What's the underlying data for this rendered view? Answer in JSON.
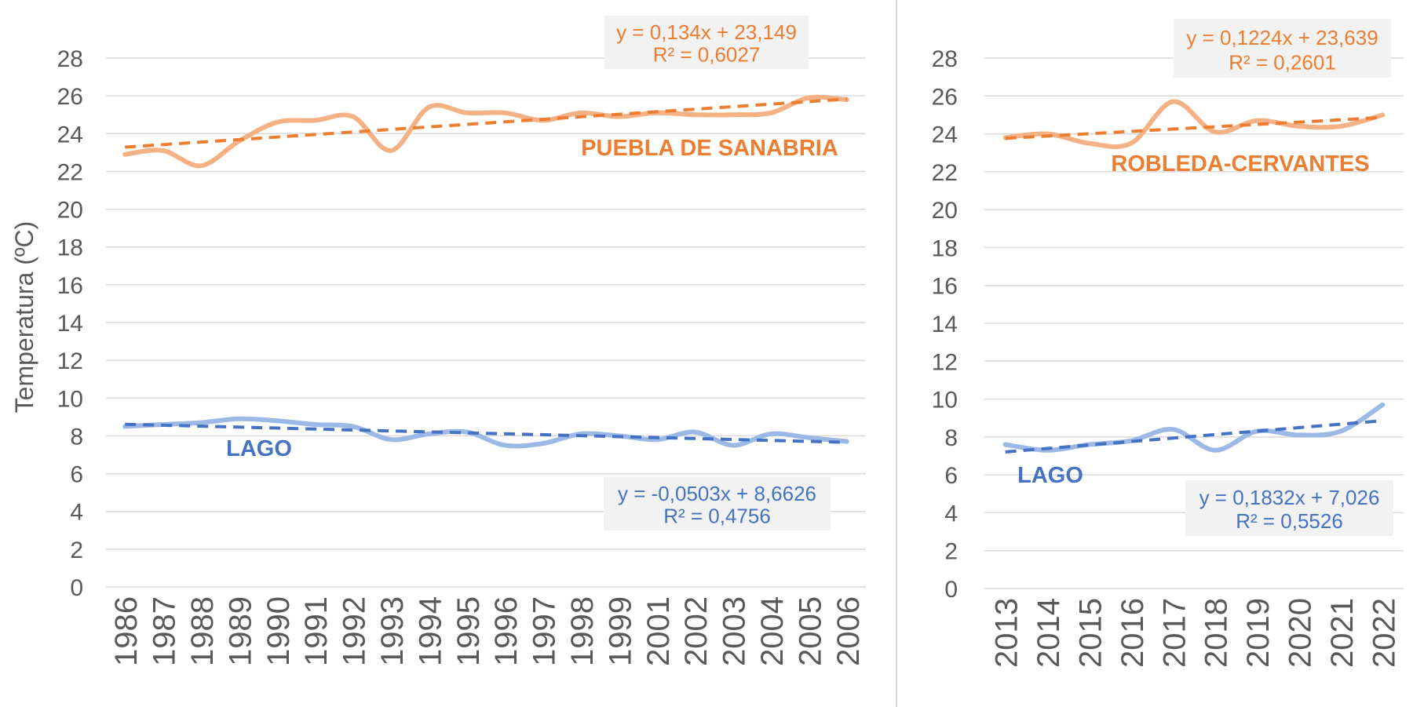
{
  "chart_data": [
    {
      "type": "line",
      "ylabel": "Temperatura (ºC)",
      "ylim": [
        0,
        28
      ],
      "yticks": [
        "0",
        "2",
        "4",
        "6",
        "8",
        "10",
        "12",
        "14",
        "16",
        "18",
        "20",
        "22",
        "24",
        "26",
        "28"
      ],
      "grid": true,
      "categories": [
        "1986",
        "1987",
        "1988",
        "1989",
        "1990",
        "1991",
        "1992",
        "1993",
        "1994",
        "1995",
        "1996",
        "1997",
        "1998",
        "1999",
        "2001",
        "2002",
        "2003",
        "2004",
        "2005",
        "2006"
      ],
      "series": [
        {
          "name": "PUEBLA DE SANABRIA",
          "label": "PUEBLA DE SANABRIA",
          "color": "#f4b183",
          "label_color": "#ed7d31",
          "values": [
            22.9,
            23.1,
            22.3,
            23.6,
            24.6,
            24.7,
            24.9,
            23.1,
            25.4,
            25.1,
            25.1,
            24.7,
            25.1,
            24.9,
            25.1,
            25.0,
            25.0,
            25.1,
            25.9,
            25.8
          ],
          "trendline": {
            "slope": 0.134,
            "intercept": 23.149,
            "color": "#ed7d31",
            "equation": "y = 0,134x + 23,149",
            "r2": "R² = 0,6027"
          }
        },
        {
          "name": "LAGO",
          "label": "LAGO",
          "color": "#9cb8e6",
          "label_color": "#4472c4",
          "values": [
            8.5,
            8.6,
            8.7,
            8.9,
            8.8,
            8.6,
            8.5,
            7.8,
            8.1,
            8.2,
            7.5,
            7.6,
            8.1,
            8.0,
            7.8,
            8.2,
            7.5,
            8.1,
            7.9,
            7.7
          ],
          "trendline": {
            "slope": -0.0503,
            "intercept": 8.6626,
            "color": "#4472c4",
            "equation": "y = -0,0503x + 8,6626",
            "r2": "R² = 0,4756"
          }
        }
      ]
    },
    {
      "type": "line",
      "ylim": [
        0,
        28
      ],
      "yticks": [
        "0",
        "2",
        "4",
        "6",
        "8",
        "10",
        "12",
        "14",
        "16",
        "18",
        "20",
        "22",
        "24",
        "26",
        "28"
      ],
      "grid": true,
      "categories": [
        "2013",
        "2014",
        "2015",
        "2016",
        "2017",
        "2018",
        "2019",
        "2020",
        "2021",
        "2022"
      ],
      "series": [
        {
          "name": "ROBLEDA-CERVANTES",
          "label": "ROBLEDA-CERVANTES",
          "color": "#f4b183",
          "label_color": "#ed7d31",
          "values": [
            23.8,
            24.0,
            23.5,
            23.5,
            25.7,
            24.1,
            24.7,
            24.4,
            24.4,
            25.0
          ],
          "trendline": {
            "slope": 0.1224,
            "intercept": 23.639,
            "color": "#ed7d31",
            "equation": "y = 0,1224x + 23,639",
            "r2": "R² = 0,2601"
          }
        },
        {
          "name": "LAGO",
          "label": "LAGO",
          "color": "#9cb8e6",
          "label_color": "#4472c4",
          "values": [
            7.6,
            7.3,
            7.6,
            7.8,
            8.4,
            7.3,
            8.3,
            8.1,
            8.3,
            9.7
          ],
          "trendline": {
            "slope": 0.1832,
            "intercept": 7.026,
            "color": "#4472c4",
            "equation": "y = 0,1832x + 7,026",
            "r2": "R² = 0,5526"
          }
        }
      ]
    }
  ]
}
